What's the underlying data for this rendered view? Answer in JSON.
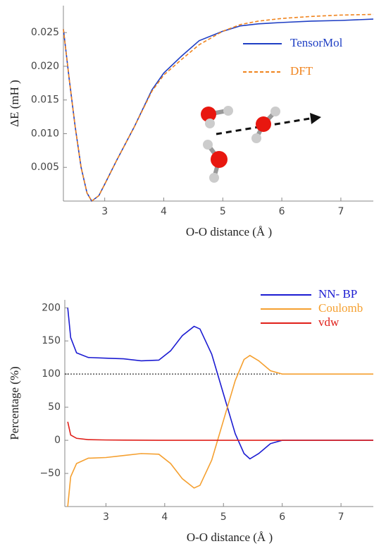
{
  "chart_data": [
    {
      "type": "line",
      "x_label": "O-O distance (Å )",
      "y_label": "ΔE (mH )",
      "x": [
        2.3,
        2.4,
        2.5,
        2.6,
        2.7,
        2.78,
        2.9,
        3.0,
        3.2,
        3.5,
        3.8,
        4.0,
        4.3,
        4.6,
        5.0,
        5.3,
        5.6,
        6.0,
        6.5,
        7.0,
        7.55
      ],
      "series": [
        {
          "name": "TensorMol",
          "color": "#1f3fc4",
          "dash": false,
          "values": [
            0.0255,
            0.018,
            0.011,
            0.005,
            0.0012,
            0,
            0.0008,
            0.0025,
            0.006,
            0.011,
            0.0165,
            0.019,
            0.0215,
            0.0238,
            0.0252,
            0.026,
            0.0263,
            0.0265,
            0.0267,
            0.0268,
            0.027
          ]
        },
        {
          "name": "DFT",
          "color": "#f0841e",
          "dash": true,
          "values": [
            0.0255,
            0.018,
            0.011,
            0.005,
            0.0012,
            0,
            0.0008,
            0.0025,
            0.006,
            0.011,
            0.0163,
            0.0187,
            0.021,
            0.0232,
            0.0252,
            0.0262,
            0.0267,
            0.0271,
            0.0274,
            0.0276,
            0.0277
          ]
        }
      ],
      "xlim": [
        2.3,
        7.55
      ],
      "xticks": [
        3,
        4,
        5,
        6,
        7
      ],
      "ylim": [
        0,
        0.029
      ],
      "yticks": [
        0.005,
        {
          "value": 0.01,
          "label": "0.010"
        },
        0.015,
        {
          "value": 0.02,
          "label": "0.020"
        },
        0.025
      ]
    },
    {
      "type": "line",
      "x_label": "O-O distance (Å )",
      "y_label": "Percentage (%)",
      "x": [
        2.35,
        2.4,
        2.5,
        2.7,
        3.0,
        3.3,
        3.6,
        3.9,
        4.1,
        4.3,
        4.5,
        4.6,
        4.8,
        5.0,
        5.2,
        5.35,
        5.45,
        5.6,
        5.8,
        6.0,
        7.55
      ],
      "series": [
        {
          "name": "NN- BP",
          "color": "#1c1cd2",
          "dash": false,
          "values": [
            200,
            155,
            132,
            125,
            124,
            123,
            120,
            121,
            135,
            158,
            172,
            168,
            130,
            70,
            10,
            -20,
            -28,
            -20,
            -5,
            0,
            0
          ]
        },
        {
          "name": "Coulomb",
          "color": "#f5a030",
          "dash": false,
          "values": [
            -100,
            -55,
            -35,
            -27,
            -26,
            -23,
            -20,
            -21,
            -35,
            -58,
            -72,
            -68,
            -30,
            30,
            90,
            122,
            128,
            120,
            105,
            100,
            100
          ]
        },
        {
          "name": "vdw",
          "color": "#e0201a",
          "dash": false,
          "values": [
            28,
            8,
            3,
            1,
            0.5,
            0.3,
            0.2,
            0,
            0,
            0,
            0,
            0,
            0,
            0,
            0,
            0,
            0,
            0,
            0,
            0,
            0
          ]
        }
      ],
      "reference_line": {
        "y": 100,
        "xmax": 5.95
      },
      "xlim": [
        2.3,
        7.55
      ],
      "xticks": [
        3,
        4,
        5,
        6,
        7
      ],
      "ylim": [
        -100,
        212
      ],
      "yticks": [
        {
          "value": -50,
          "label": "−50"
        },
        0,
        50,
        100,
        150,
        200
      ]
    }
  ]
}
